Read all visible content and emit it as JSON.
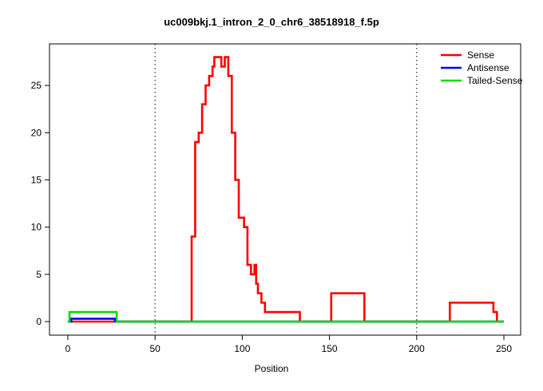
{
  "chart_data": {
    "type": "line",
    "title": "uc009bkj.1_intron_2_0_chr6_38518918_f.5p",
    "xlabel": "Position",
    "ylabel": "",
    "xlim": [
      -10.5,
      259.6
    ],
    "ylim": [
      -1.44,
      29.4
    ],
    "xticks": [
      0,
      50,
      100,
      150,
      200,
      250
    ],
    "yticks": [
      0,
      5,
      10,
      15,
      20,
      25
    ],
    "grid": false,
    "vlines": [
      {
        "x": 50,
        "style": "dotted",
        "color": "#000000"
      },
      {
        "x": 200,
        "style": "dotted",
        "color": "#000000"
      }
    ],
    "legend_position": "top-right",
    "series": [
      {
        "name": "Sense",
        "color": "#ff0000",
        "points": [
          [
            0,
            0
          ],
          [
            71,
            0
          ],
          [
            71,
            9
          ],
          [
            73,
            9
          ],
          [
            73,
            19
          ],
          [
            75,
            19
          ],
          [
            75,
            20
          ],
          [
            77,
            20
          ],
          [
            77,
            23
          ],
          [
            79,
            23
          ],
          [
            79,
            25
          ],
          [
            81,
            25
          ],
          [
            81,
            26
          ],
          [
            83,
            26
          ],
          [
            83,
            27
          ],
          [
            84,
            27
          ],
          [
            84,
            28
          ],
          [
            88,
            28
          ],
          [
            88,
            27
          ],
          [
            90,
            27
          ],
          [
            90,
            28
          ],
          [
            92,
            28
          ],
          [
            92,
            26
          ],
          [
            94,
            26
          ],
          [
            94,
            20
          ],
          [
            96,
            20
          ],
          [
            96,
            15
          ],
          [
            98,
            15
          ],
          [
            98,
            11
          ],
          [
            101,
            11
          ],
          [
            101,
            10
          ],
          [
            103,
            10
          ],
          [
            103,
            6
          ],
          [
            105,
            6
          ],
          [
            105,
            5
          ],
          [
            107,
            5
          ],
          [
            107,
            6
          ],
          [
            108,
            6
          ],
          [
            108,
            4
          ],
          [
            109,
            4
          ],
          [
            109,
            3
          ],
          [
            111,
            3
          ],
          [
            111,
            2
          ],
          [
            113,
            2
          ],
          [
            113,
            1
          ],
          [
            133,
            1
          ],
          [
            133,
            0
          ],
          [
            151,
            0
          ],
          [
            151,
            3
          ],
          [
            170,
            3
          ],
          [
            170,
            0
          ],
          [
            219,
            0
          ],
          [
            219,
            2
          ],
          [
            244,
            2
          ],
          [
            244,
            1
          ],
          [
            246,
            1
          ],
          [
            246,
            0
          ],
          [
            250,
            0
          ]
        ]
      },
      {
        "name": "Antisense",
        "color": "#0000ff",
        "points": [
          [
            0,
            0
          ],
          [
            2,
            0
          ],
          [
            2,
            0.3
          ],
          [
            27,
            0.3
          ],
          [
            27,
            0
          ],
          [
            250,
            0
          ]
        ]
      },
      {
        "name": "Tailed-Sense",
        "color": "#00dd00",
        "points": [
          [
            0,
            0
          ],
          [
            1,
            0
          ],
          [
            1,
            1
          ],
          [
            28,
            1
          ],
          [
            28,
            0
          ],
          [
            250,
            0
          ]
        ]
      }
    ]
  }
}
